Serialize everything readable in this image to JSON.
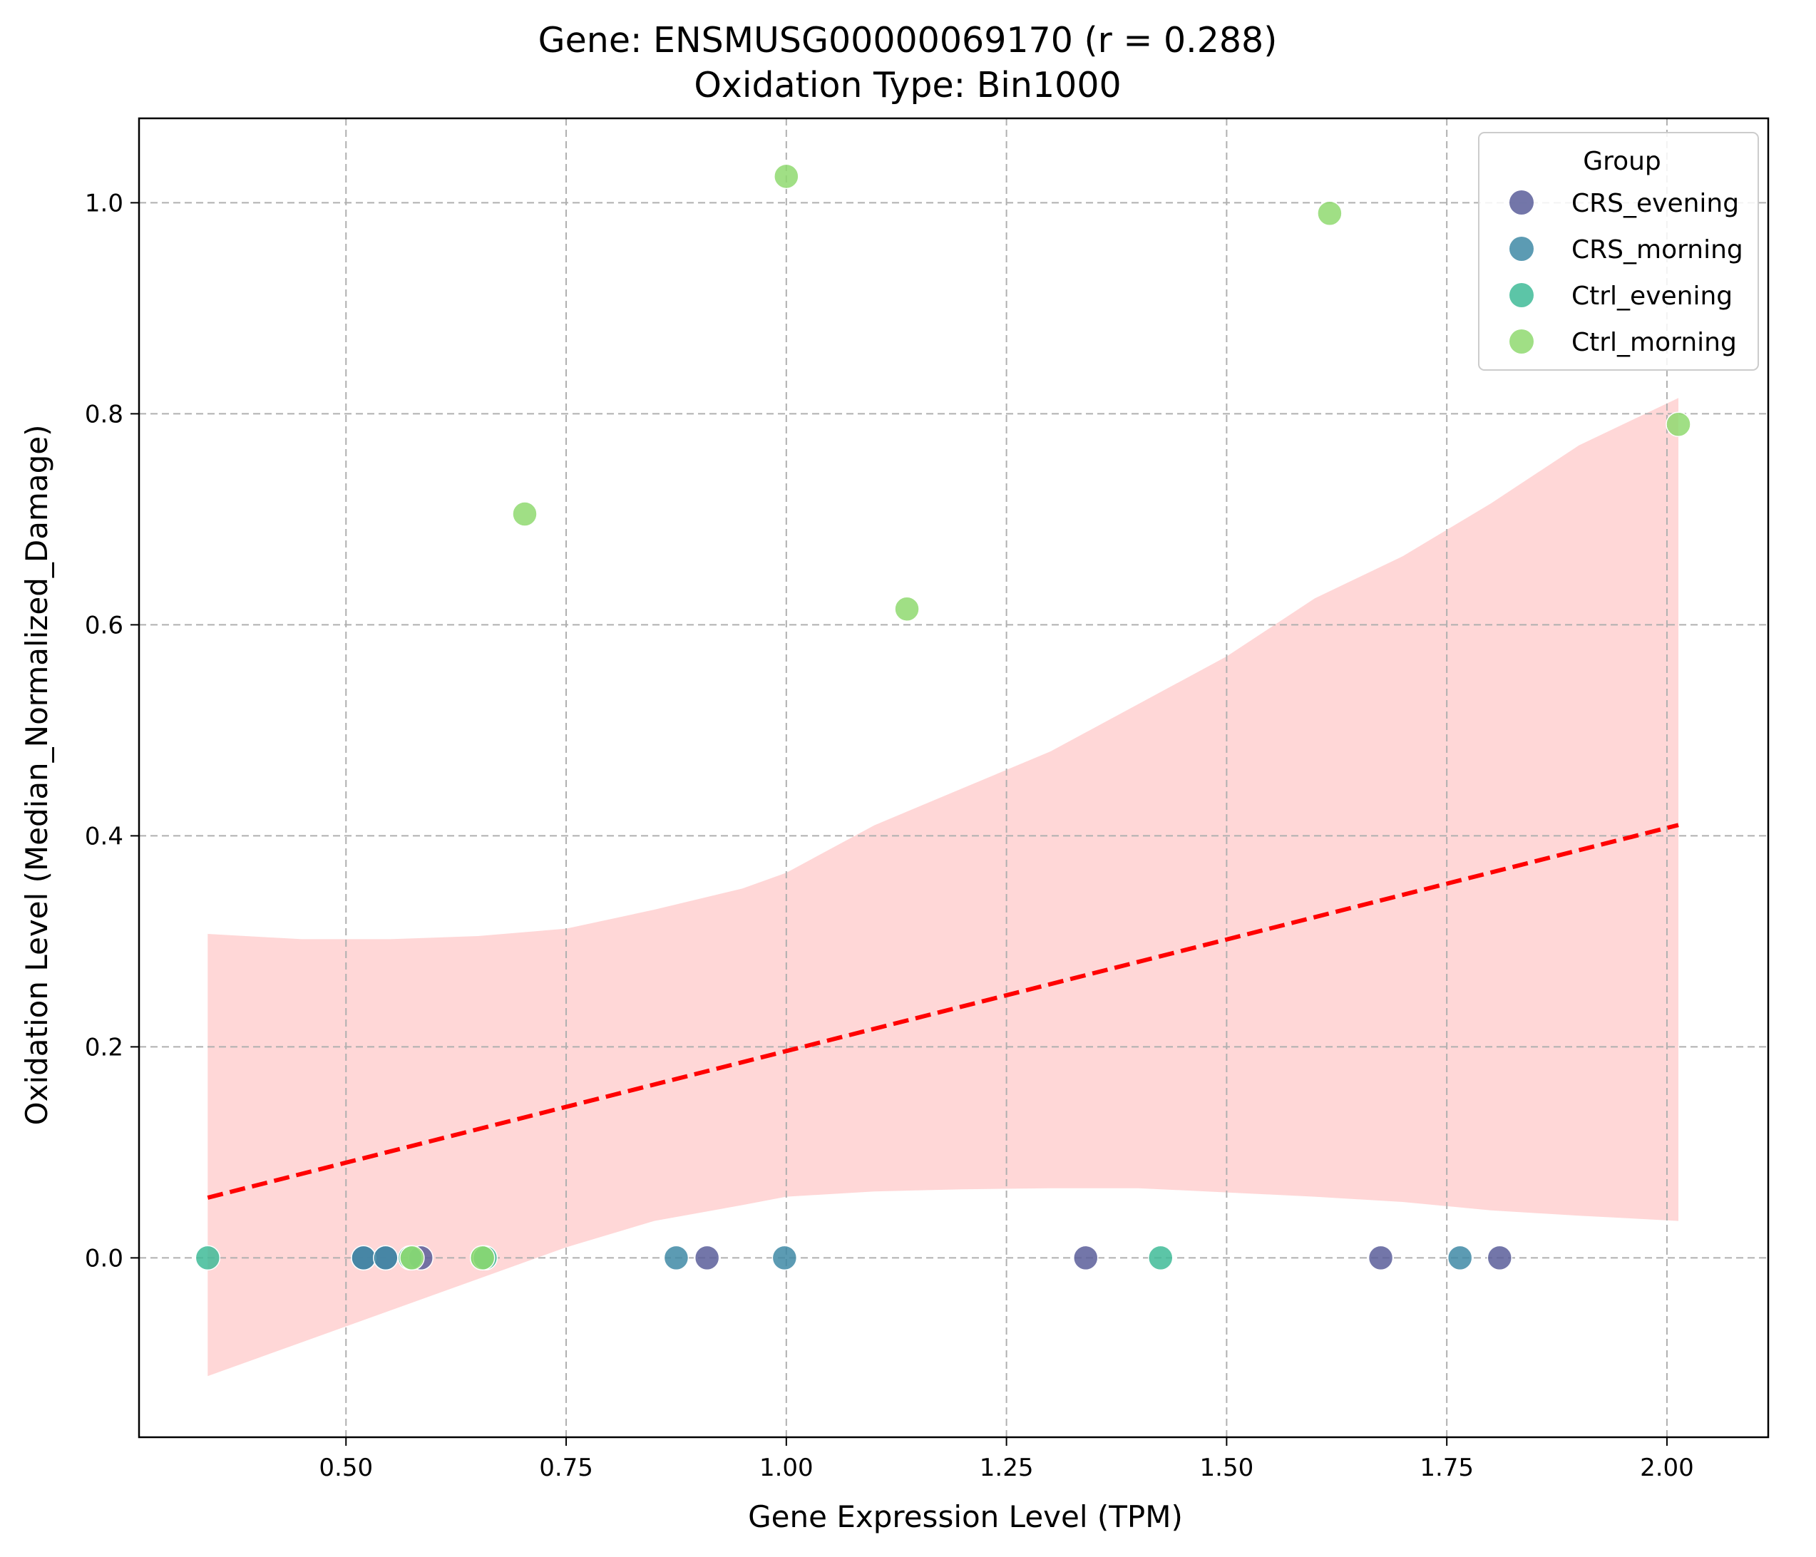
{
  "chart_data": {
    "type": "scatter",
    "title": "Gene: ENSMUSG00000069170 (r = 0.288)",
    "subtitle": "Oxidation Type: Bin1000",
    "xlabel": "Gene Expression Level (TPM)",
    "ylabel": "Oxidation Level (Median_Normalized_Damage)",
    "xlim": [
      0.265,
      2.115
    ],
    "ylim": [
      -0.17,
      1.08
    ],
    "x_ticks": [
      0.5,
      0.75,
      1.0,
      1.25,
      1.5,
      1.75,
      2.0
    ],
    "x_tick_labels": [
      "0.50",
      "0.75",
      "1.00",
      "1.25",
      "1.50",
      "1.75",
      "2.00"
    ],
    "y_ticks": [
      0.0,
      0.2,
      0.4,
      0.6,
      0.8,
      1.0
    ],
    "y_tick_labels": [
      "0.0",
      "0.2",
      "0.4",
      "0.6",
      "0.8",
      "1.0"
    ],
    "grid": true,
    "legend": {
      "title": "Group",
      "position": "top-right",
      "entries": [
        {
          "label": "CRS_evening",
          "color": "#5b5e9a"
        },
        {
          "label": "CRS_morning",
          "color": "#3f8aa6"
        },
        {
          "label": "Ctrl_evening",
          "color": "#3fbb98"
        },
        {
          "label": "Ctrl_morning",
          "color": "#8fd970"
        }
      ]
    },
    "series": [
      {
        "name": "CRS_evening",
        "color": "#5b5e9a",
        "points": [
          [
            0.52,
            0.0
          ],
          [
            0.545,
            0.0
          ],
          [
            0.585,
            0.0
          ],
          [
            0.91,
            0.0
          ],
          [
            1.34,
            0.0
          ],
          [
            1.675,
            0.0
          ],
          [
            1.81,
            0.0
          ]
        ]
      },
      {
        "name": "CRS_morning",
        "color": "#3f8aa6",
        "points": [
          [
            0.52,
            0.0
          ],
          [
            0.545,
            0.0
          ],
          [
            0.875,
            0.0
          ],
          [
            0.998,
            0.0
          ],
          [
            1.765,
            0.0
          ]
        ]
      },
      {
        "name": "Ctrl_evening",
        "color": "#3fbb98",
        "points": [
          [
            0.343,
            0.0
          ],
          [
            0.573,
            0.0
          ],
          [
            0.655,
            0.0
          ],
          [
            0.658,
            0.0
          ],
          [
            1.425,
            0.0
          ]
        ]
      },
      {
        "name": "Ctrl_morning",
        "color": "#8fd970",
        "points": [
          [
            0.703,
            0.705
          ],
          [
            1.0,
            1.025
          ],
          [
            1.137,
            0.615
          ],
          [
            1.617,
            0.99
          ],
          [
            2.013,
            0.79
          ],
          [
            0.575,
            0.0
          ],
          [
            0.655,
            0.0
          ]
        ]
      }
    ],
    "regression": {
      "color": "#ff0000",
      "style": "dashed",
      "x_range": [
        0.343,
        2.013
      ],
      "intercept": -0.0155,
      "slope": 0.2115
    },
    "confidence_band": {
      "color": "#ffd5d5",
      "x": [
        0.343,
        0.45,
        0.55,
        0.65,
        0.75,
        0.85,
        0.95,
        1.0,
        1.1,
        1.2,
        1.3,
        1.4,
        1.5,
        1.6,
        1.7,
        1.8,
        1.9,
        2.013
      ],
      "upper": [
        0.307,
        0.302,
        0.302,
        0.305,
        0.312,
        0.33,
        0.35,
        0.365,
        0.41,
        0.445,
        0.48,
        0.525,
        0.57,
        0.625,
        0.665,
        0.715,
        0.77,
        0.815
      ],
      "lower": [
        -0.112,
        -0.08,
        -0.05,
        -0.02,
        0.01,
        0.035,
        0.05,
        0.058,
        0.063,
        0.065,
        0.066,
        0.066,
        0.062,
        0.058,
        0.053,
        0.045,
        0.04,
        0.035
      ]
    }
  }
}
